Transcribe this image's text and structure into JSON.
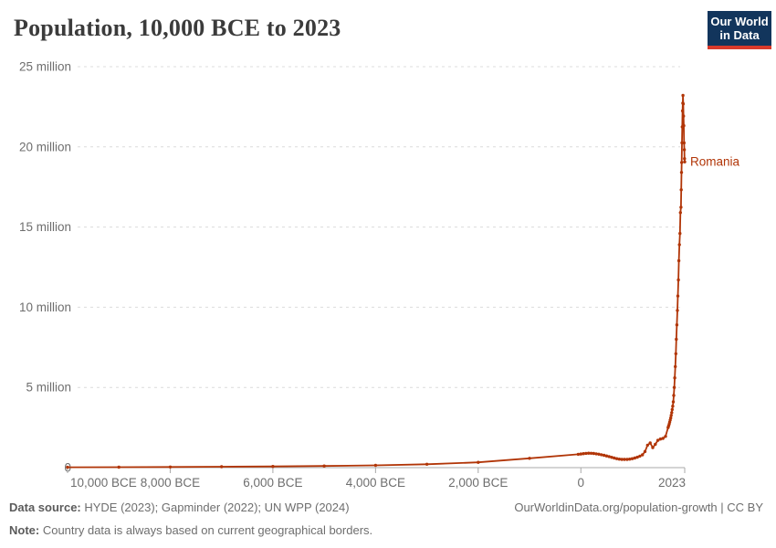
{
  "header": {
    "title": "Population, 10,000 BCE to 2023",
    "logo": {
      "line1": "Our World",
      "line2": "in Data"
    }
  },
  "chart_data": {
    "type": "line",
    "title": "Population, 10,000 BCE to 2023",
    "entity": "Romania",
    "legend_position": "end-of-line label",
    "grid": "dashed horizontal gridlines",
    "x_axis": {
      "range": [
        -10000,
        2023
      ],
      "tick_years": [
        -10000,
        -8000,
        -6000,
        -4000,
        -2000,
        0,
        2023
      ],
      "tick_labels": [
        "10,000 BCE",
        "8,000 BCE",
        "6,000 BCE",
        "4,000 BCE",
        "2,000 BCE",
        "0",
        "2023"
      ]
    },
    "y_axis": {
      "range": [
        0,
        25000000
      ],
      "tick_values": [
        0,
        5000000,
        10000000,
        15000000,
        20000000,
        25000000
      ],
      "tick_labels": [
        "0",
        "5 million",
        "10 million",
        "15 million",
        "20 million",
        "25 million"
      ]
    },
    "series": [
      {
        "name": "Romania",
        "color": "#b13507",
        "points": [
          [
            -10000,
            20000
          ],
          [
            -9000,
            28000
          ],
          [
            -8000,
            40000
          ],
          [
            -7000,
            55000
          ],
          [
            -6000,
            75000
          ],
          [
            -5000,
            100000
          ],
          [
            -4000,
            145000
          ],
          [
            -3000,
            210000
          ],
          [
            -2000,
            330000
          ],
          [
            -1000,
            580000
          ],
          [
            -50,
            830000
          ],
          [
            0,
            850000
          ],
          [
            50,
            870000
          ],
          [
            100,
            890000
          ],
          [
            150,
            900000
          ],
          [
            200,
            895000
          ],
          [
            250,
            880000
          ],
          [
            300,
            860000
          ],
          [
            350,
            835000
          ],
          [
            400,
            805000
          ],
          [
            450,
            770000
          ],
          [
            500,
            730000
          ],
          [
            550,
            690000
          ],
          [
            600,
            645000
          ],
          [
            650,
            600000
          ],
          [
            700,
            560000
          ],
          [
            750,
            530000
          ],
          [
            800,
            515000
          ],
          [
            850,
            510000
          ],
          [
            900,
            515000
          ],
          [
            950,
            530000
          ],
          [
            1000,
            560000
          ],
          [
            1050,
            600000
          ],
          [
            1100,
            650000
          ],
          [
            1150,
            720000
          ],
          [
            1200,
            800000
          ],
          [
            1250,
            1000000
          ],
          [
            1300,
            1400000
          ],
          [
            1350,
            1540000
          ],
          [
            1400,
            1250000
          ],
          [
            1450,
            1450000
          ],
          [
            1500,
            1700000
          ],
          [
            1550,
            1780000
          ],
          [
            1600,
            1820000
          ],
          [
            1650,
            1950000
          ],
          [
            1700,
            2500000
          ],
          [
            1710,
            2600000
          ],
          [
            1720,
            2710000
          ],
          [
            1730,
            2830000
          ],
          [
            1740,
            2960000
          ],
          [
            1750,
            3100000
          ],
          [
            1760,
            3260000
          ],
          [
            1770,
            3430000
          ],
          [
            1780,
            3620000
          ],
          [
            1790,
            3830000
          ],
          [
            1800,
            4100000
          ],
          [
            1810,
            4500000
          ],
          [
            1820,
            5000000
          ],
          [
            1830,
            5600000
          ],
          [
            1840,
            6300000
          ],
          [
            1850,
            7100000
          ],
          [
            1860,
            8000000
          ],
          [
            1870,
            8900000
          ],
          [
            1880,
            9800000
          ],
          [
            1890,
            10700000
          ],
          [
            1900,
            11700000
          ],
          [
            1910,
            12900000
          ],
          [
            1920,
            13900000
          ],
          [
            1930,
            14600000
          ],
          [
            1940,
            15900000
          ],
          [
            1950,
            16236000
          ],
          [
            1955,
            17325000
          ],
          [
            1960,
            18403000
          ],
          [
            1965,
            19028000
          ],
          [
            1970,
            20253000
          ],
          [
            1975,
            21245000
          ],
          [
            1980,
            22243000
          ],
          [
            1985,
            22725000
          ],
          [
            1990,
            23207000
          ],
          [
            1995,
            22684000
          ],
          [
            2000,
            21920000
          ],
          [
            2005,
            21319000
          ],
          [
            2010,
            20246000
          ],
          [
            2015,
            19815000
          ],
          [
            2020,
            19266000
          ],
          [
            2023,
            19067000
          ]
        ]
      }
    ]
  },
  "footer": {
    "data_source_label": "Data source:",
    "data_source": " HYDE (2023); Gapminder (2022); UN WPP (2024)",
    "note_label": "Note:",
    "note": " Country data is always based on current geographical borders.",
    "link": "OurWorldinData.org/population-growth | CC BY"
  },
  "colors": {
    "line": "#b13507",
    "entity_label": "#b13507",
    "grid": "#dcdcdc",
    "axis": "#a8a8a8",
    "tick_text": "#6e6e6e",
    "title": "#3b3b3b",
    "logo_bg": "#12355c",
    "logo_bar": "#d93a2b"
  }
}
